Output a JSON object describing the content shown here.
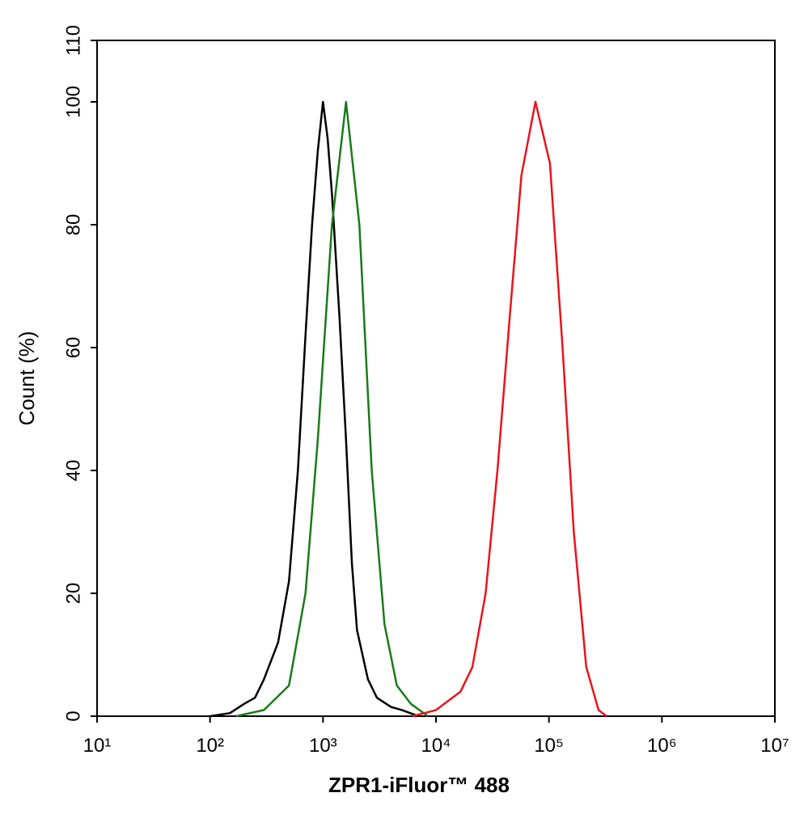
{
  "chart_data": {
    "type": "line",
    "x_label": "ZPR1-iFluor™ 488",
    "y_label": "Count (%)",
    "x_scale": "log",
    "xlim": [
      10,
      10000000
    ],
    "xticks": [
      {
        "value": 10,
        "label": "10¹"
      },
      {
        "value": 100,
        "label": "10²"
      },
      {
        "value": 1000,
        "label": "10³"
      },
      {
        "value": 10000,
        "label": "10⁴"
      },
      {
        "value": 100000,
        "label": "10⁵"
      },
      {
        "value": 1000000,
        "label": "10⁶"
      },
      {
        "value": 10000000,
        "label": "10⁷"
      }
    ],
    "ylim": [
      0,
      110
    ],
    "yticks": [
      0,
      20,
      40,
      60,
      80,
      100,
      110
    ],
    "series": [
      {
        "color": "#000000",
        "x": [
          100,
          150,
          200,
          250,
          300,
          400,
          500,
          600,
          700,
          800,
          900,
          1000,
          1100,
          1200,
          1400,
          1600,
          1800,
          2000,
          2500,
          3000,
          4000,
          5000,
          7000
        ],
        "values": [
          0,
          0.5,
          2,
          3,
          6,
          12,
          22,
          40,
          62,
          80,
          92,
          100,
          94,
          85,
          65,
          45,
          25,
          14,
          6,
          3,
          1.5,
          1,
          0
        ]
      },
      {
        "color": "#1a7a1a",
        "x": [
          170,
          300,
          500,
          700,
          900,
          1200,
          1600,
          2100,
          2700,
          3500,
          4500,
          6000,
          8500
        ],
        "values": [
          0,
          1,
          5,
          20,
          45,
          80,
          100,
          80,
          40,
          15,
          5,
          2,
          0
        ]
      },
      {
        "color": "#e8141c",
        "x": [
          6200,
          10000,
          16500,
          21000,
          27500,
          35000,
          45000,
          57000,
          76000,
          102000,
          132000,
          166000,
          214000,
          275000,
          324000
        ],
        "values": [
          0,
          1,
          4,
          8,
          20,
          40,
          65,
          88,
          100,
          90,
          60,
          30,
          8,
          1,
          0
        ]
      }
    ]
  }
}
